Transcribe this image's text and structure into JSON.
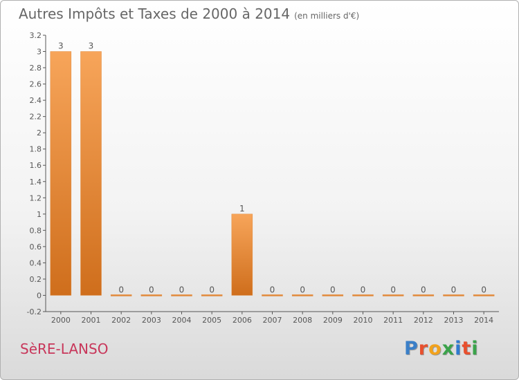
{
  "title": "Autres Impôts et Taxes de 2000 à 2014",
  "unit": "(en milliers d'€)",
  "commune": "SèRE-LANSO",
  "logo": {
    "text": "Proxiti",
    "letter_colors": [
      "#3a7fc8",
      "#e8502e",
      "#f2a21c",
      "#3aa34a",
      "#2f7bd0",
      "#e8502e",
      "#3aa34a"
    ]
  },
  "chart_data": {
    "type": "bar",
    "categories": [
      "2000",
      "2001",
      "2002",
      "2003",
      "2004",
      "2005",
      "2006",
      "2007",
      "2008",
      "2009",
      "2010",
      "2011",
      "2012",
      "2013",
      "2014"
    ],
    "values": [
      3,
      3,
      0,
      0,
      0,
      0,
      1,
      0,
      0,
      0,
      0,
      0,
      0,
      0,
      0
    ],
    "value_labels": [
      "3",
      "3",
      "0",
      "0",
      "0",
      "0",
      "1",
      "0",
      "0",
      "0",
      "0",
      "0",
      "0",
      "0",
      "0"
    ],
    "title": "Autres Impôts et Taxes de 2000 à 2014",
    "xlabel": "",
    "ylabel": "",
    "ylim": [
      -0.2,
      3.2
    ],
    "yticks": [
      "-0.2",
      "0",
      "0.2",
      "0.4",
      "0.6",
      "0.8",
      "1",
      "1.2",
      "1.4",
      "1.6",
      "1.8",
      "2",
      "2.2",
      "2.4",
      "2.6",
      "2.8",
      "3",
      "3.2"
    ],
    "ytick_values": [
      -0.2,
      0,
      0.2,
      0.4,
      0.6,
      0.8,
      1,
      1.2,
      1.4,
      1.6,
      1.8,
      2,
      2.2,
      2.4,
      2.6,
      2.8,
      3,
      3.2
    ],
    "grid": false,
    "colors": {
      "bar_light": "#f7a55a",
      "bar_dark": "#d0701d",
      "axis": "#555555",
      "label": "#555555"
    }
  }
}
